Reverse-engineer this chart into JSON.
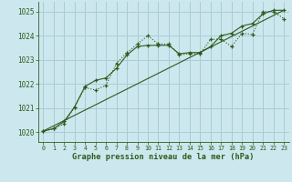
{
  "title": "Graphe pression niveau de la mer (hPa)",
  "background_color": "#cce8ee",
  "grid_color": "#aaccd4",
  "line_color": "#2d5a1b",
  "ylim": [
    1019.6,
    1025.4
  ],
  "xlim": [
    -0.5,
    23.5
  ],
  "yticks": [
    1020,
    1021,
    1022,
    1023,
    1024,
    1025
  ],
  "xticks": [
    0,
    1,
    2,
    3,
    4,
    5,
    6,
    7,
    8,
    9,
    10,
    11,
    12,
    13,
    14,
    15,
    16,
    17,
    18,
    19,
    20,
    21,
    22,
    23
  ],
  "series_dotted": {
    "x": [
      0,
      1,
      2,
      3,
      4,
      5,
      6,
      7,
      8,
      9,
      10,
      11,
      12,
      13,
      14,
      15,
      16,
      17,
      18,
      19,
      20,
      21,
      22,
      23
    ],
    "y": [
      1020.05,
      1020.15,
      1020.35,
      1021.05,
      1021.85,
      1021.75,
      1021.95,
      1022.85,
      1023.3,
      1023.65,
      1024.0,
      1023.65,
      1023.65,
      1023.2,
      1023.25,
      1023.25,
      1023.85,
      1023.85,
      1023.55,
      1024.1,
      1024.05,
      1025.0,
      1025.0,
      1024.7
    ]
  },
  "series_solid": {
    "x": [
      0,
      1,
      2,
      3,
      4,
      5,
      6,
      7,
      8,
      9,
      10,
      11,
      12,
      13,
      14,
      15,
      16,
      17,
      18,
      19,
      20,
      21,
      22,
      23
    ],
    "y": [
      1020.05,
      1020.15,
      1020.45,
      1021.05,
      1021.9,
      1022.15,
      1022.25,
      1022.65,
      1023.2,
      1023.55,
      1023.6,
      1023.6,
      1023.6,
      1023.25,
      1023.3,
      1023.3,
      1023.55,
      1024.0,
      1024.1,
      1024.4,
      1024.5,
      1024.9,
      1025.05,
      1025.05
    ]
  },
  "series_line": {
    "x": [
      0,
      23
    ],
    "y": [
      1020.05,
      1025.05
    ]
  }
}
